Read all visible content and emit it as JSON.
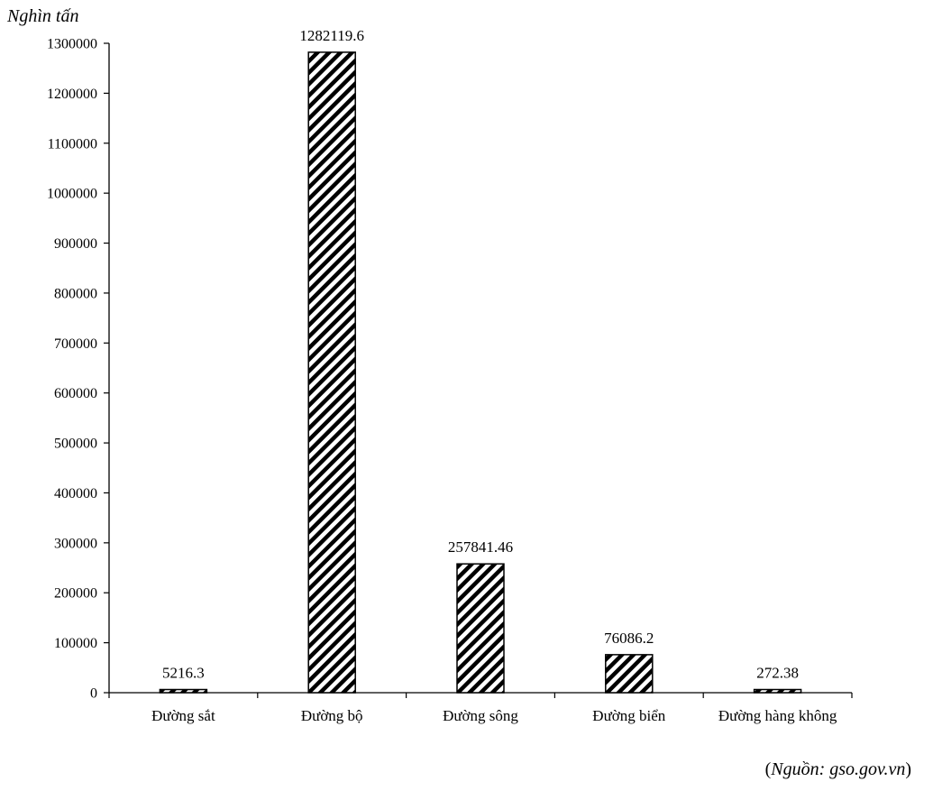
{
  "unit_label": "Nghìn tấn",
  "source": {
    "open": "(",
    "text": "Nguồn: gso.gov.vn",
    "close": ")"
  },
  "chart_data": {
    "type": "bar",
    "title": "",
    "xlabel": "",
    "ylabel": "Nghìn tấn",
    "ylim": [
      0,
      1300000
    ],
    "yticks": [
      0,
      100000,
      200000,
      300000,
      400000,
      500000,
      600000,
      700000,
      800000,
      900000,
      1000000,
      1100000,
      1200000,
      1300000
    ],
    "categories": [
      "Đường sắt",
      "Đường bộ",
      "Đường sông",
      "Đường biển",
      "Đường hàng không"
    ],
    "values": [
      5216.3,
      1282119.6,
      257841.46,
      76086.2,
      272.38
    ],
    "data_labels": [
      "5216.3",
      "1282119.6",
      "257841.46",
      "76086.2",
      "272.38"
    ],
    "grid": false,
    "legend": "none",
    "bar_fill": "diagonal-hatch",
    "colors": {
      "bar_stroke": "#000000",
      "hatch": "#000000",
      "background": "#ffffff"
    }
  }
}
